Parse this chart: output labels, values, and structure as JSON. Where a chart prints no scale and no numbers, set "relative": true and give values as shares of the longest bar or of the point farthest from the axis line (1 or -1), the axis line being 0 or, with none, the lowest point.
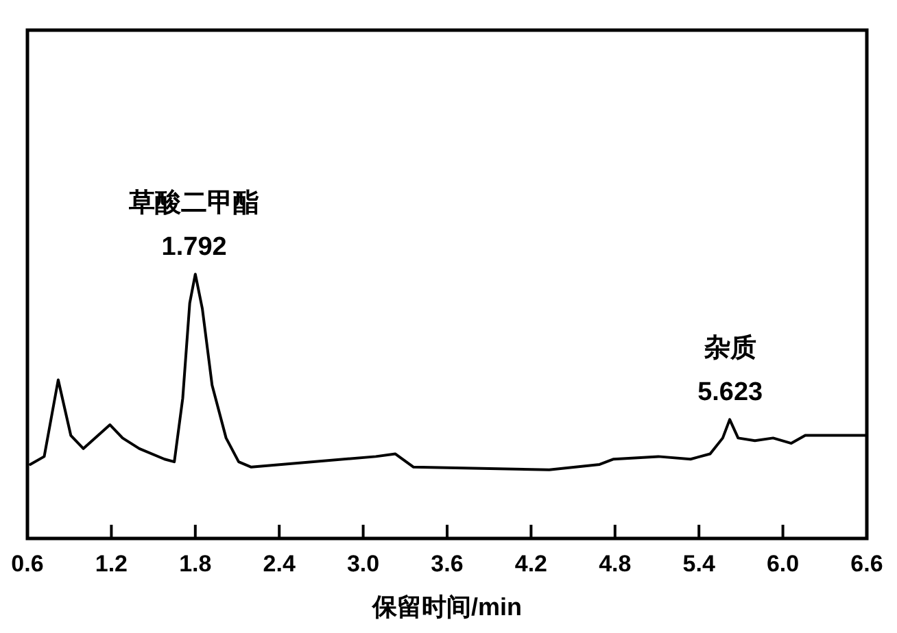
{
  "chart_data": {
    "type": "line",
    "relative": true,
    "xlabel": "保留时间/min",
    "xlim": [
      0.6,
      6.6
    ],
    "xticks": [
      0.6,
      1.2,
      1.8,
      2.4,
      {
        "value": 3,
        "label": "3.0"
      },
      3.6,
      4.2,
      4.8,
      5.4,
      {
        "value": 6,
        "label": "6.0"
      },
      6.6
    ],
    "tick_labels": "x",
    "grid": false,
    "series": [
      {
        "color": "#000000",
        "x": [
          0.62,
          0.72,
          0.82,
          0.91,
          1.0,
          1.19,
          1.28,
          1.4,
          1.58,
          1.65,
          1.71,
          1.76,
          1.8,
          1.85,
          1.92,
          2.02,
          2.11,
          2.2,
          3.09,
          3.23,
          3.36,
          4.33,
          4.69,
          4.79,
          5.11,
          5.34,
          5.48,
          5.57,
          5.62,
          5.68,
          5.8,
          5.93,
          6.06,
          6.16,
          6.36,
          6.6
        ],
        "values": [
          0.28,
          0.31,
          0.6,
          0.39,
          0.34,
          0.43,
          0.38,
          0.34,
          0.3,
          0.29,
          0.53,
          0.89,
          1.0,
          0.87,
          0.58,
          0.38,
          0.29,
          0.27,
          0.31,
          0.32,
          0.27,
          0.26,
          0.28,
          0.3,
          0.31,
          0.3,
          0.32,
          0.38,
          0.45,
          0.38,
          0.37,
          0.38,
          0.36,
          0.39,
          0.39,
          0.39
        ]
      }
    ],
    "annotations": [
      {
        "text": "草酸二甲酯\n1.792",
        "x": 1.792,
        "y": 1.0
      },
      {
        "text": "杂质\n5.623",
        "x": 5.623,
        "y": 0.45
      }
    ]
  }
}
